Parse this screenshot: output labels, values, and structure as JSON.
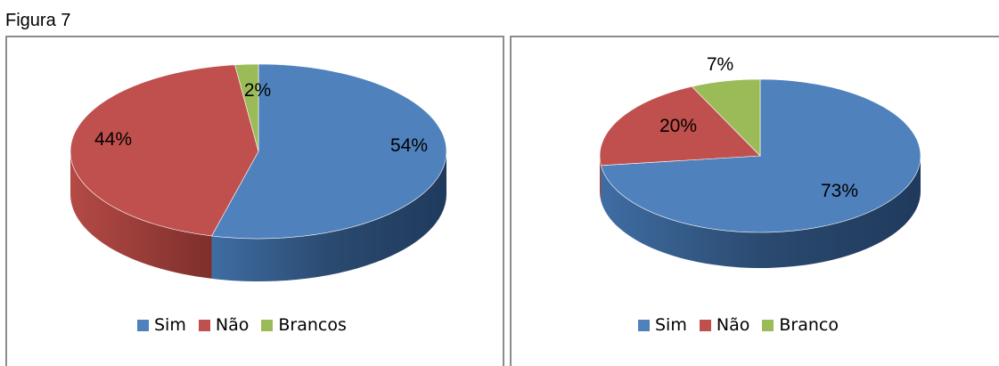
{
  "figure_title": "Figura 7",
  "colors": {
    "Sim": "#4F81BD",
    "Não": "#C0504D",
    "Brancos": "#9BBB59"
  },
  "chart_data": [
    {
      "type": "pie",
      "title": "",
      "categories": [
        "Sim",
        "Não",
        "Brancos"
      ],
      "values": [
        54,
        44,
        2
      ],
      "data_labels": [
        "54%",
        "44%",
        "2%"
      ],
      "colors": [
        "#4F81BD",
        "#C0504D",
        "#9BBB59"
      ],
      "legend": "bottom",
      "style": "3d"
    },
    {
      "type": "pie",
      "title": "",
      "categories": [
        "Sim",
        "Não",
        "Branco"
      ],
      "values": [
        73,
        20,
        7
      ],
      "data_labels": [
        "73%",
        "20%",
        "7%"
      ],
      "colors": [
        "#4F81BD",
        "#C0504D",
        "#9BBB59"
      ],
      "legend": "bottom",
      "style": "3d"
    }
  ]
}
